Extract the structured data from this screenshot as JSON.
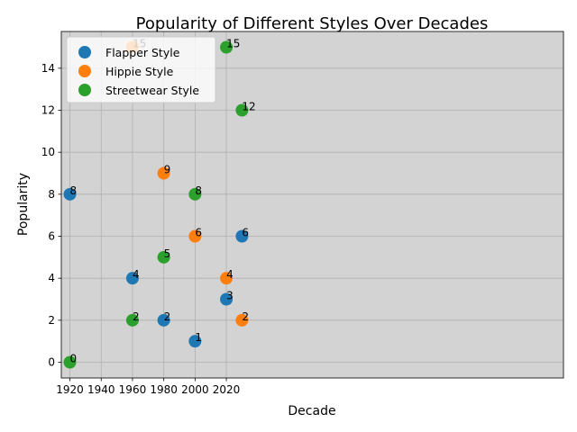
{
  "chart_data": {
    "type": "scatter",
    "title": "Popularity of Different Styles Over Decades",
    "xlabel": "Decade",
    "ylabel": "Popularity",
    "xlim": [
      1914.5,
      2235.5
    ],
    "ylim": [
      -0.75,
      15.75
    ],
    "xticks": [
      1920,
      1940,
      1960,
      1980,
      2000,
      2020
    ],
    "yticks": [
      0,
      2,
      4,
      6,
      8,
      10,
      12,
      14
    ],
    "grid": true,
    "legend_position": "top-left",
    "series": [
      {
        "name": "Flapper Style",
        "color": "#1f77b4",
        "x": [
          1920,
          1960,
          1980,
          2000,
          2020,
          2030
        ],
        "y": [
          8,
          4,
          2,
          1,
          3,
          6
        ]
      },
      {
        "name": "Hippie Style",
        "color": "#ff7f0e",
        "x": [
          1960,
          1980,
          2000,
          2020,
          2030
        ],
        "y": [
          15,
          9,
          6,
          4,
          2
        ]
      },
      {
        "name": "Streetwear Style",
        "color": "#2ca02c",
        "x": [
          1920,
          1960,
          1980,
          2000,
          2020,
          2030
        ],
        "y": [
          0,
          2,
          5,
          8,
          15,
          12
        ]
      }
    ]
  }
}
